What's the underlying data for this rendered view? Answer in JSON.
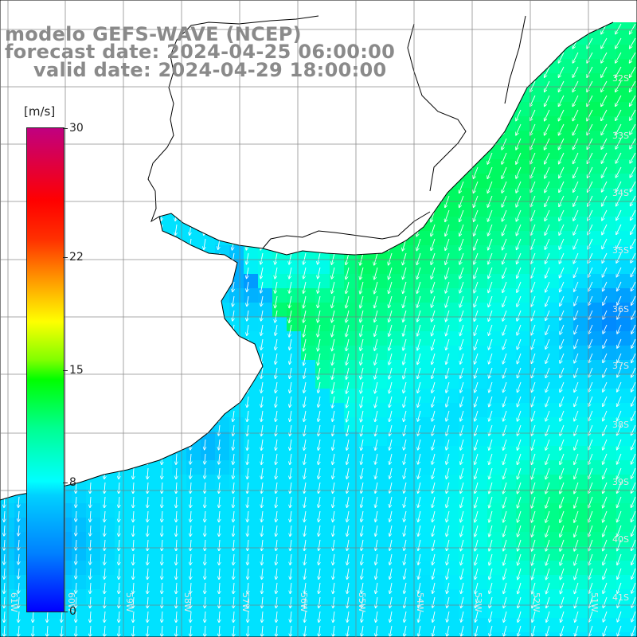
{
  "header": {
    "model_line": "modelo GEFS-WAVE (NCEP)",
    "forecast_line": "forecast date: 2024-04-25 06:00:00",
    "valid_line": "valid date: 2024-04-29 18:00:00"
  },
  "colorbar": {
    "unit": "[m/s]",
    "ticks": [
      "30",
      "22",
      "15",
      "8",
      "0"
    ],
    "tick_values": [
      30,
      22,
      15,
      8,
      0
    ],
    "range": [
      0,
      30
    ],
    "colors": [
      "#0000ff",
      "#0080ff",
      "#00c8ff",
      "#00ffff",
      "#00ff80",
      "#00ff00",
      "#80ff00",
      "#ffff00",
      "#ffa000",
      "#ff4000",
      "#ff0000",
      "#e00060",
      "#c0007f"
    ]
  },
  "map": {
    "latitude_labels": [
      "32S",
      "33S",
      "34S",
      "35S",
      "36S",
      "37S",
      "38S",
      "39S",
      "40S",
      "41S"
    ],
    "longitude_labels": [
      "61W",
      "60W",
      "59W",
      "58W",
      "57W",
      "56W",
      "55W",
      "54W",
      "53W",
      "52W",
      "51W"
    ],
    "land_color": "#ffffff",
    "grid_color": "#808080",
    "coast_color": "#000000",
    "arrow_color": "#ffffff",
    "wind_direction": "from northeast toward southwest"
  }
}
